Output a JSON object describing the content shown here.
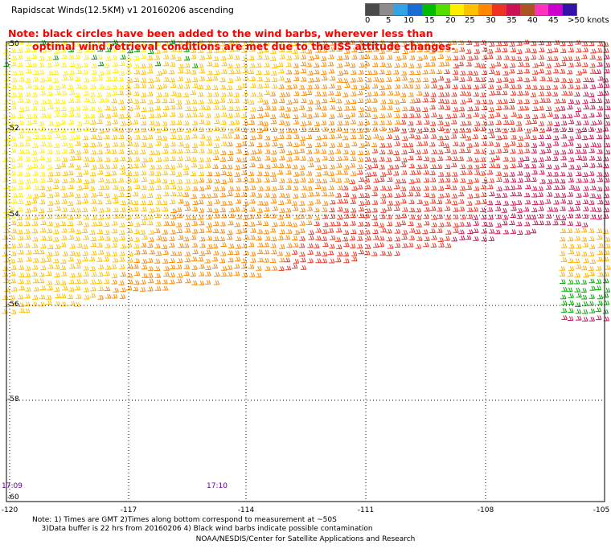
{
  "header": {
    "title": "Rapidscat Winds(12.5KM) v1 20160206 ascending",
    "note_line1": "Note: black circles have been added to the wind barbs, wherever less than",
    "note_line2": "optimal wind retrieval conditions are met due to the ISS attitude changes."
  },
  "legend": {
    "colors": [
      "#4a4a4a",
      "#8c8c8c",
      "#33a3e6",
      "#1a6bd6",
      "#00bb00",
      "#55dd00",
      "#ffee00",
      "#ffc000",
      "#ff8800",
      "#ee3322",
      "#cc1155",
      "#aa5522",
      "#ff33bb",
      "#cc00cc",
      "#3311aa"
    ],
    "labels": [
      "0",
      "5",
      "10",
      "15",
      "20",
      "25",
      "30",
      "35",
      "40",
      "45",
      ">50 knots"
    ]
  },
  "axes": {
    "lat_labels": [
      "-50",
      "-52",
      "-54",
      "-56",
      "-58",
      "-60"
    ],
    "lon_labels": [
      "-120",
      "-117",
      "-114",
      "-111",
      "-108",
      "-105"
    ]
  },
  "times": [
    "17:09",
    "17:10"
  ],
  "footnote": {
    "line1": "Note: 1) Times are GMT 2)Times along bottom correspond to measurement at ~50S",
    "line2": "3)Data buffer is 22 hrs from 20160206 4) Black wind barbs indicate possible contamination"
  },
  "credit": "NOAA/NESDIS/Center for Satellite Applications and Research"
}
